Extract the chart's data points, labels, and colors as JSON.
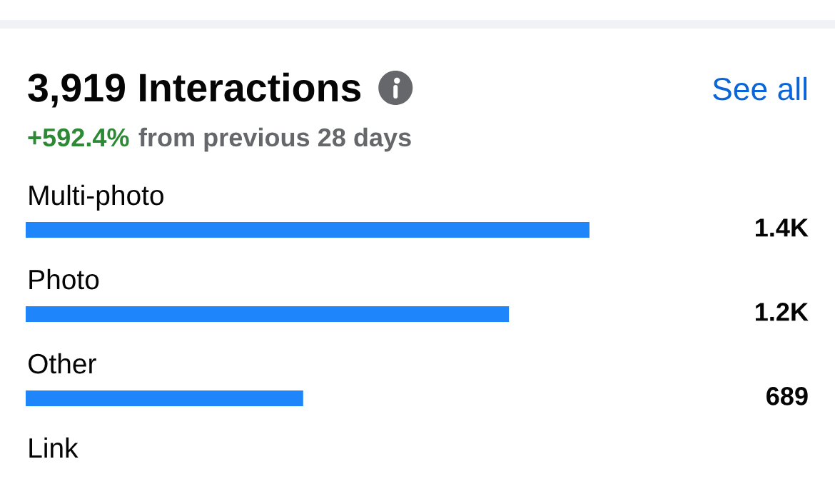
{
  "chart_data": {
    "type": "bar",
    "orientation": "horizontal",
    "title": "3,919 Interactions",
    "subtitle": "+592.4% from previous 28 days",
    "categories": [
      "Multi-photo",
      "Photo",
      "Other",
      "Link"
    ],
    "values": [
      1400,
      1200,
      689,
      null
    ],
    "value_labels": [
      "1.4K",
      "1.2K",
      "689",
      null
    ],
    "color": "#1f85fa",
    "tick_labels": "y",
    "annotations": [
      "See all"
    ]
  }
}
